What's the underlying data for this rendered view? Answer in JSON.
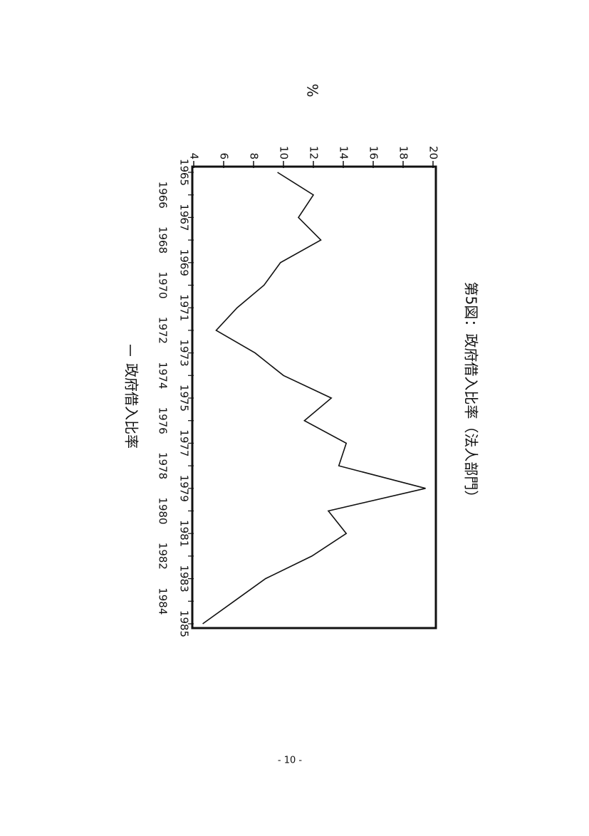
{
  "chart_data": {
    "type": "line",
    "title": "第5図：政府借入比率（法人部門）",
    "ylabel": "%",
    "categories": [
      "1965",
      "1966",
      "1967",
      "1968",
      "1969",
      "1970",
      "1971",
      "1972",
      "1973",
      "1974",
      "1975",
      "1976",
      "1977",
      "1978",
      "1979",
      "1980",
      "1981",
      "1982",
      "1983",
      "1984",
      "1985"
    ],
    "series": [
      {
        "name": "政府借入比率",
        "color": "#111111",
        "values": [
          9.6,
          12.0,
          11.0,
          12.5,
          9.8,
          8.7,
          6.9,
          5.5,
          8.1,
          10.0,
          13.2,
          11.4,
          14.2,
          13.7,
          19.5,
          13.0,
          14.2,
          11.9,
          8.8,
          6.7,
          4.6
        ]
      }
    ],
    "ylim": [
      4,
      20
    ],
    "yticks": [
      4,
      6,
      8,
      10,
      12,
      14,
      16,
      18,
      20
    ]
  },
  "page_number": "- 10 -"
}
